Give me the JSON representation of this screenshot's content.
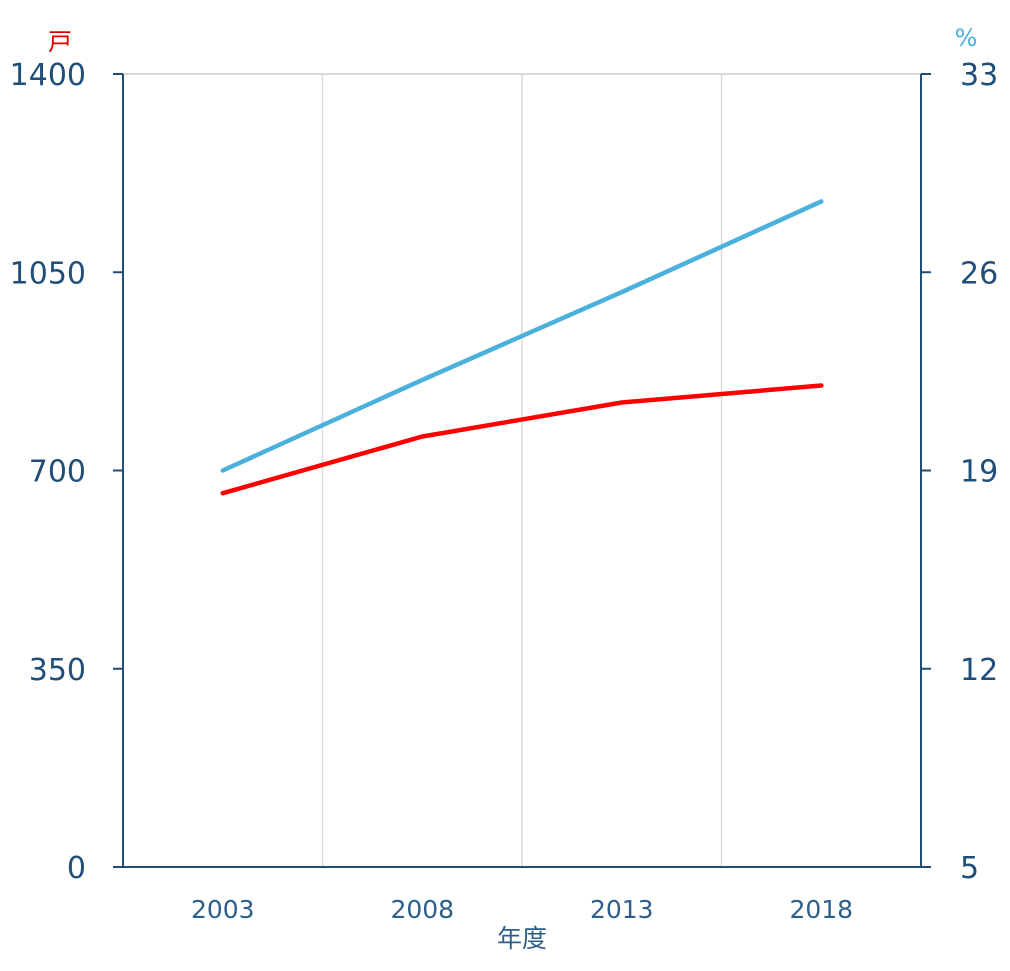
{
  "chart_data": {
    "type": "line",
    "title": "",
    "xlabel": "年度",
    "x": [
      "2003",
      "2008",
      "2013",
      "2018"
    ],
    "y_left": {
      "unit": "戸",
      "ylim": [
        0,
        1400
      ],
      "ticks": [
        "0",
        "350",
        "700",
        "1050",
        "1400"
      ]
    },
    "y_right": {
      "unit": "%",
      "ylim": [
        5,
        33
      ],
      "ticks": [
        "5",
        "12",
        "19",
        "26",
        "33"
      ]
    },
    "series": [
      {
        "axis": "left",
        "color": "#ff0000",
        "values": [
          660,
          760,
          820,
          850
        ]
      },
      {
        "axis": "right",
        "color": "#4ab0dc",
        "values": [
          19.0,
          22.2,
          25.3,
          28.5
        ]
      }
    ],
    "grid": true
  }
}
